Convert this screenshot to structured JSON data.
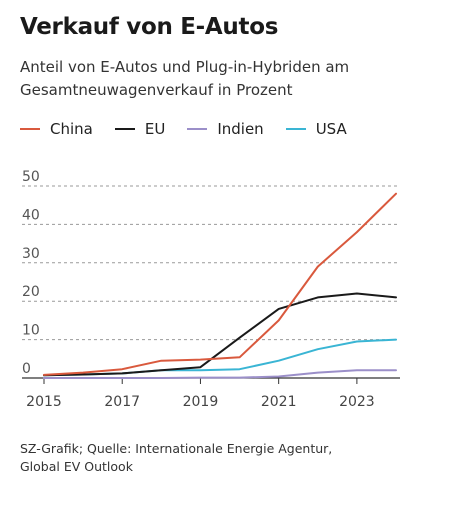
{
  "header": {
    "title": "Verkauf von E-Autos",
    "subtitle": "Anteil von E-Autos und Plug-in-Hybriden am Gesamtneuwagenverkauf in Prozent"
  },
  "footer": {
    "source_line1": "SZ-Grafik; Quelle: Internationale Energie Agentur,",
    "source_line2": "Global EV Outlook"
  },
  "chart_data": {
    "type": "line",
    "title": "Verkauf von E-Autos",
    "subtitle": "Anteil von E-Autos und Plug-in-Hybriden am Gesamtneuwagenverkauf in Prozent",
    "xlabel": "",
    "ylabel": "",
    "x": [
      2015,
      2016,
      2017,
      2018,
      2019,
      2020,
      2021,
      2022,
      2023,
      2024
    ],
    "xticks": [
      "2015",
      "2017",
      "2019",
      "2021",
      "2023"
    ],
    "yticks": [
      "0",
      "10",
      "20",
      "30",
      "40",
      "50"
    ],
    "ylim": [
      0,
      50
    ],
    "grid": true,
    "legend_position": "top-left",
    "series": [
      {
        "name": "China",
        "color": "#d9593d",
        "values": [
          0.8,
          1.4,
          2.3,
          4.5,
          4.8,
          5.4,
          15,
          29,
          38,
          48
        ]
      },
      {
        "name": "EU",
        "color": "#1a1a1a",
        "values": [
          0.7,
          0.9,
          1.2,
          2.0,
          2.8,
          10.5,
          18,
          21,
          22,
          21
        ]
      },
      {
        "name": "Indien",
        "color": "#9b8fc9",
        "values": [
          0.0,
          0.0,
          0.0,
          0.0,
          0.1,
          0.1,
          0.4,
          1.4,
          2.0,
          2.0
        ]
      },
      {
        "name": "USA",
        "color": "#3ab5d4",
        "values": [
          0.7,
          0.9,
          1.2,
          2.0,
          2.0,
          2.3,
          4.5,
          7.5,
          9.5,
          10
        ]
      }
    ]
  }
}
